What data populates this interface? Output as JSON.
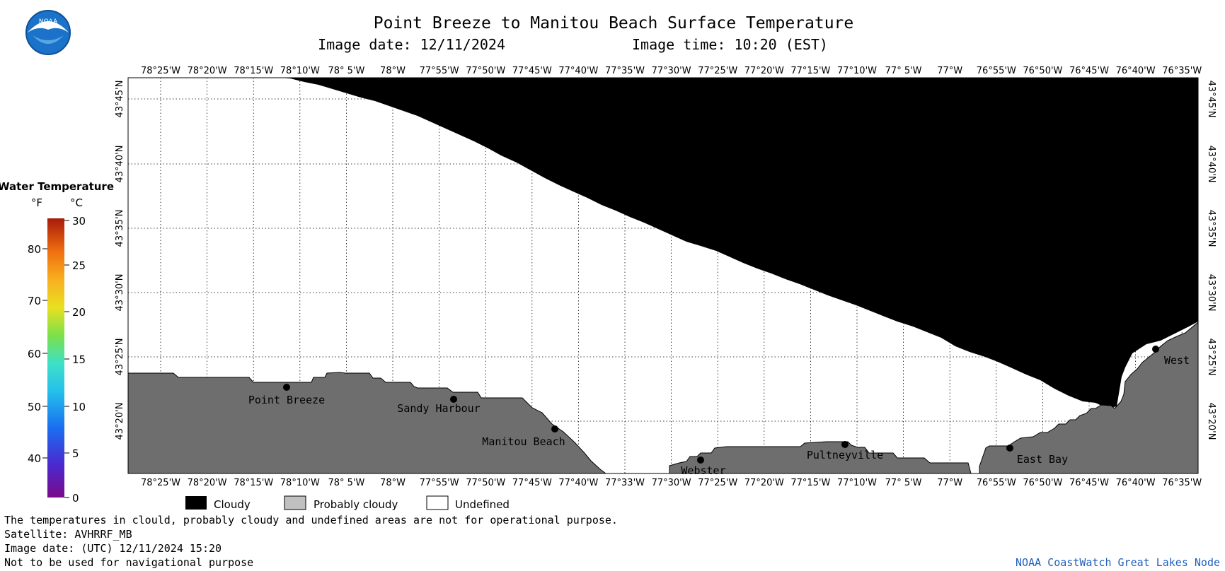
{
  "title": "Point Breeze to Manitou Beach Surface Temperature",
  "subtitle_date": "Image date: 12/11/2024",
  "subtitle_time": "Image time: 10:20 (EST)",
  "logo_text": "NOAA",
  "legend": {
    "title": "Water Temperature",
    "unit_f": "°F",
    "unit_c": "°C",
    "f_ticks": [
      "80",
      "70",
      "60",
      "50",
      "40"
    ],
    "c_ticks": [
      "30",
      "25",
      "20",
      "15",
      "10",
      "5",
      "0"
    ]
  },
  "lon_labels": [
    "78°25'W",
    "78°20'W",
    "78°15'W",
    "78°10'W",
    "78° 5'W",
    "78°W",
    "77°55'W",
    "77°50'W",
    "77°45'W",
    "77°40'W",
    "77°35'W",
    "77°30'W",
    "77°25'W",
    "77°20'W",
    "77°15'W",
    "77°10'W",
    "77° 5'W",
    "77°W",
    "76°55'W",
    "76°50'W",
    "76°45'W",
    "76°40'W",
    "76°35'W"
  ],
  "lon_labels_bottom_special": {
    "index": 10,
    "text": "77°33'W"
  },
  "lat_labels": [
    "43°45'N",
    "43°40'N",
    "43°35'N",
    "43°30'N",
    "43°25'N",
    "43°20'N"
  ],
  "places": [
    {
      "name": "Point Breeze"
    },
    {
      "name": "Sandy Harbour"
    },
    {
      "name": "Manitou Beach"
    },
    {
      "name": "Webster"
    },
    {
      "name": "Pultneyville"
    },
    {
      "name": "East Bay"
    },
    {
      "name": "West"
    }
  ],
  "categories": {
    "cloudy": "Cloudy",
    "probably_cloudy": "Probably cloudy",
    "undefined": "Undefined"
  },
  "colors": {
    "cloudy": "#000000",
    "probably_cloudy_key": "#c0c0c0",
    "land": "#6e6e6e",
    "undefined": "#ffffff",
    "credit": "#1f5fbf"
  },
  "notes": [
    "The temperatures in clould, probably cloudy and undefined areas are not for operational purpose.",
    "Satellite: AVHRRF_MB",
    "Image date: (UTC) 12/11/2024  15:20",
    "Not to be used for navigational purpose"
  ],
  "credit": "NOAA CoastWatch Great Lakes Node"
}
